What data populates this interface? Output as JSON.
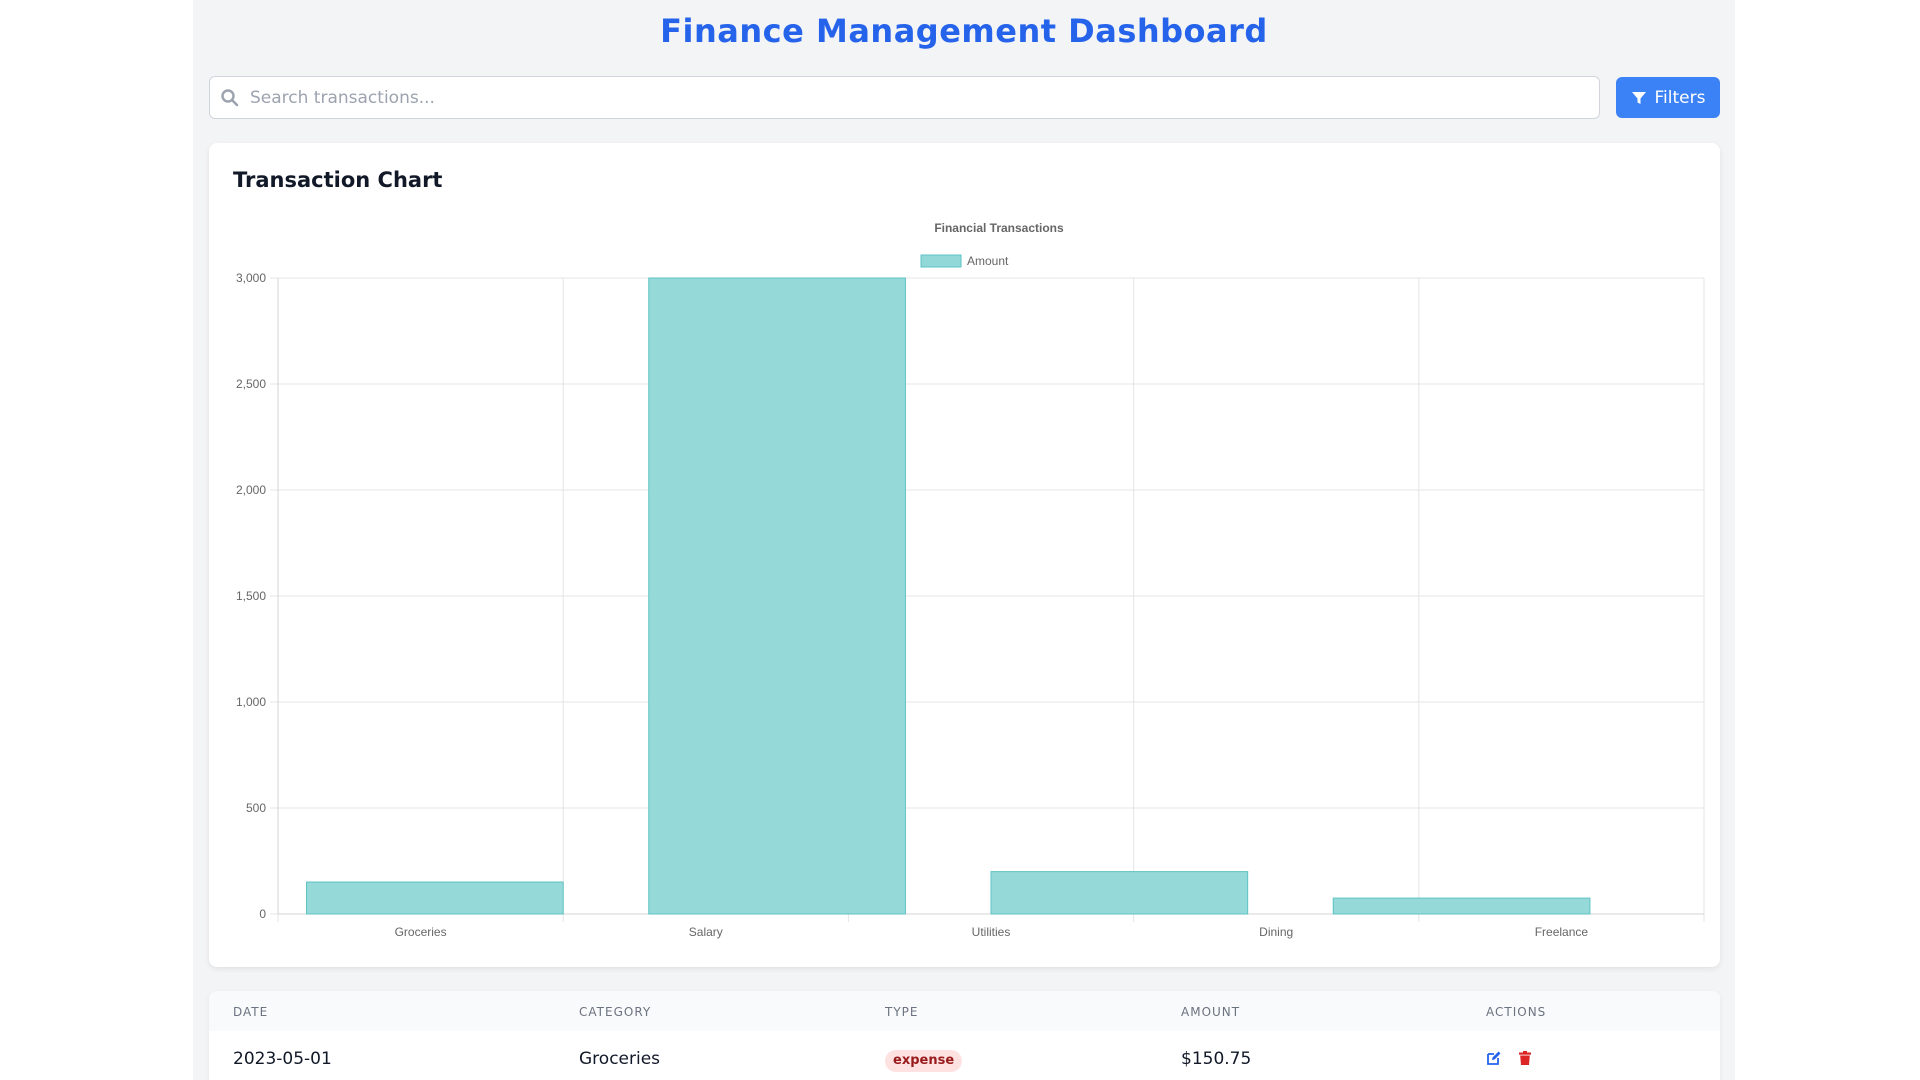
{
  "header": {
    "title": "Finance Management Dashboard"
  },
  "search": {
    "placeholder": "Search transactions...",
    "value": ""
  },
  "toolbar": {
    "filters_label": "Filters"
  },
  "chart_card": {
    "title": "Transaction Chart"
  },
  "chart_data": {
    "type": "bar",
    "title": "Financial Transactions",
    "categories": [
      "Groceries",
      "Salary",
      "Utilities",
      "Dining",
      "Freelance"
    ],
    "series": [
      {
        "name": "Amount",
        "values": [
          150.75,
          3000,
          200,
          75,
          0
        ]
      }
    ],
    "ylim": [
      0,
      3000
    ],
    "yticks": [
      0,
      500,
      1000,
      1500,
      2000,
      2500,
      3000
    ],
    "ytick_labels": [
      "0",
      "500",
      "1,000",
      "1,500",
      "2,000",
      "2,500",
      "3,000"
    ],
    "grid": true,
    "legend": "top-center",
    "bar_color": "#93d8d8",
    "bar_border": "#5ec3c3"
  },
  "table": {
    "headers": [
      "Date",
      "Category",
      "Type",
      "Amount",
      "Actions"
    ],
    "rows": [
      {
        "date": "2023-05-01",
        "category": "Groceries",
        "type": "expense",
        "amount": "$150.75"
      }
    ]
  },
  "icons": {
    "search": "search-icon",
    "filter": "filter-icon",
    "edit": "edit-icon",
    "delete": "trash-icon"
  },
  "colors": {
    "accent": "#2563eb",
    "button": "#3b82f6",
    "edit": "#2563eb",
    "delete": "#dc2626"
  }
}
